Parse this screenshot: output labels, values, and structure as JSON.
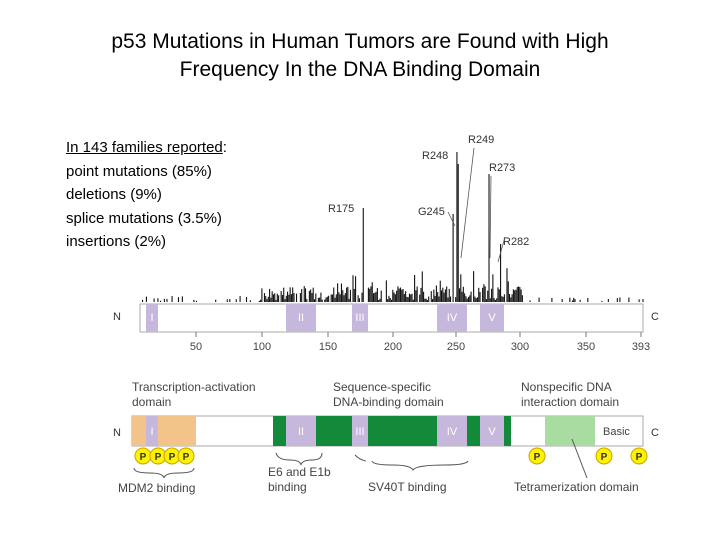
{
  "title": {
    "line1": "p53 Mutations in Human Tumors are Found with High",
    "line2": "Frequency In the DNA Binding Domain"
  },
  "stats": {
    "heading": "In 143 families reported",
    "heading_suffix": ":",
    "items": [
      "point mutations (85%)",
      "deletions (9%)",
      "splice mutations (3.5%)",
      "insertions (2%)"
    ]
  },
  "hotspots": [
    {
      "label": "R175",
      "position": 175
    },
    {
      "label": "G245",
      "position": 245
    },
    {
      "label": "R248",
      "position": 248
    },
    {
      "label": "R249",
      "position": 249
    },
    {
      "label": "R273",
      "position": 273
    },
    {
      "label": "R282",
      "position": 282
    }
  ],
  "mutation_map": {
    "n_label": "N",
    "c_label": "C",
    "conserved_boxes": [
      "I",
      "II",
      "III",
      "IV",
      "V"
    ],
    "axis_ticks": [
      "50",
      "100",
      "150",
      "200",
      "250",
      "300",
      "350",
      "393"
    ]
  },
  "domain_map": {
    "n_label": "N",
    "c_label": "C",
    "conserved_boxes": [
      "I",
      "II",
      "III",
      "IV",
      "V"
    ],
    "basic_label": "Basic",
    "domains": {
      "transactivation": [
        "Transcription-activation",
        "domain"
      ],
      "dna_binding": [
        "Sequence-specific",
        "DNA-binding domain"
      ],
      "nonspecific": [
        "Nonspecific DNA",
        "interaction domain"
      ]
    },
    "phospho_label": "P",
    "binding_labels": {
      "mdm2": "MDM2 binding",
      "e6": [
        "E6 and E1b",
        "binding"
      ],
      "sv40": "SV40T binding",
      "tetramerization": "Tetramerization domain"
    }
  },
  "colors": {
    "box_fill": "#c6b8dc",
    "transactivation_fill": "#f2c48a",
    "dna_binding_fill": "#128a3a",
    "tetramerization_fill": "#a9dca0",
    "phospho_fill": "#fff200",
    "phospho_stroke": "#c8a400"
  }
}
